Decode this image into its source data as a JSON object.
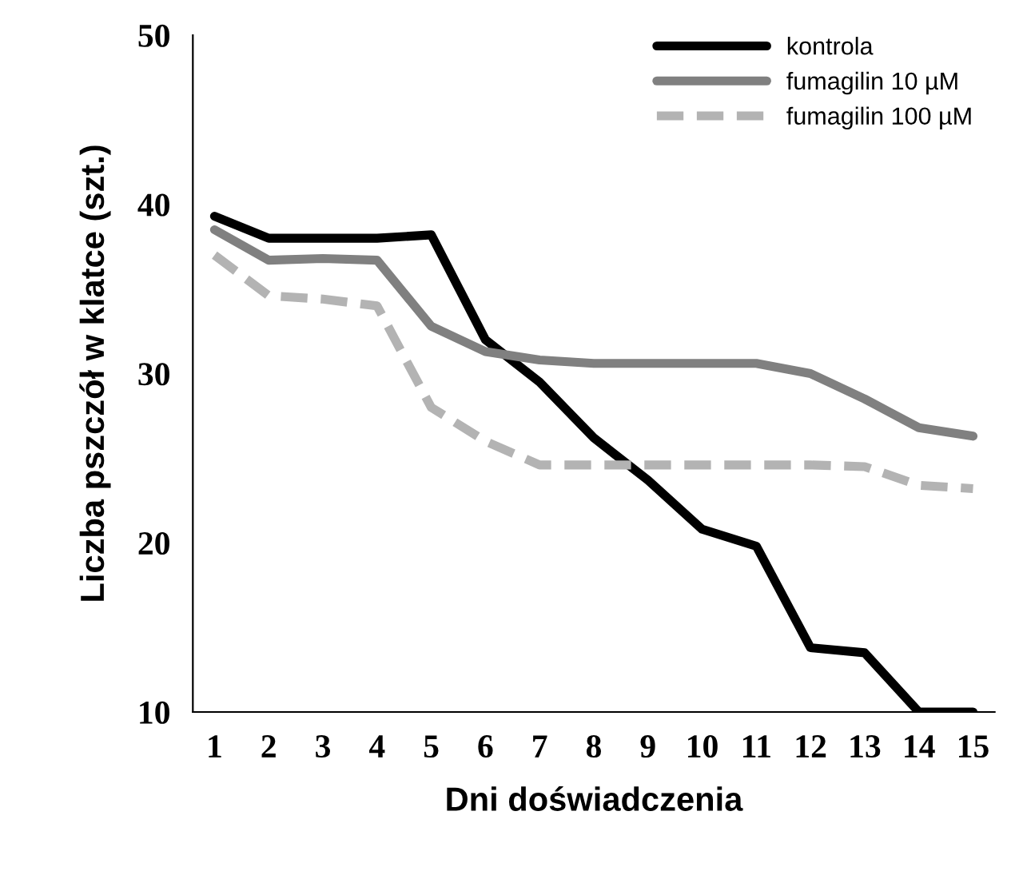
{
  "chart_data": {
    "type": "line",
    "xlabel": "Dni doświadczenia",
    "ylabel": "Liczba pszczół w klatce (szt.)",
    "categories": [
      "1",
      "2",
      "3",
      "4",
      "5",
      "6",
      "7",
      "8",
      "9",
      "10",
      "11",
      "12",
      "13",
      "14",
      "15"
    ],
    "series": [
      {
        "name": "kontrola",
        "color": "#000000",
        "line_style": "solid",
        "values": [
          39.3,
          38,
          38,
          38,
          38.2,
          32,
          29.5,
          26.2,
          23.7,
          20.8,
          19.8,
          13.8,
          13.5,
          10,
          10
        ]
      },
      {
        "name": "fumagilin 10 µM",
        "color": "#808080",
        "line_style": "solid",
        "values": [
          38.5,
          36.7,
          36.8,
          36.7,
          32.8,
          31.3,
          30.8,
          30.6,
          30.6,
          30.6,
          30.6,
          30,
          28.5,
          26.8,
          26.3
        ]
      },
      {
        "name": "fumagilin 100 µM",
        "color": "#b3b3b3",
        "line_style": "dashed",
        "values": [
          37,
          34.6,
          34.4,
          34,
          28,
          26,
          24.6,
          24.6,
          24.6,
          24.6,
          24.6,
          24.6,
          24.5,
          23.4,
          23.2
        ]
      }
    ],
    "ylim": [
      10,
      50
    ],
    "yticks": [
      10,
      20,
      30,
      40,
      50
    ],
    "grid": false,
    "legend": "top right",
    "marker": "none"
  }
}
